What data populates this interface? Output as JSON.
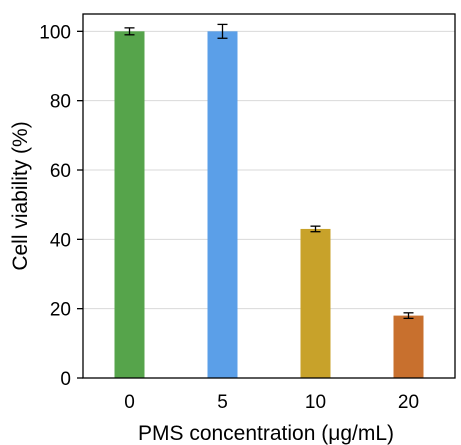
{
  "chart_data": {
    "type": "bar",
    "title": "",
    "xlabel": "PMS concentration (μg/mL)",
    "ylabel": "Cell viability  (%)",
    "categories": [
      "0",
      "5",
      "10",
      "20"
    ],
    "values": [
      100,
      100,
      43,
      18
    ],
    "errors": [
      1,
      2,
      0.8,
      0.8
    ],
    "colors": [
      "#56a44b",
      "#5b9fe8",
      "#c8a22a",
      "#c8702e"
    ],
    "ylim": [
      0,
      105
    ],
    "yticks": [
      0,
      20,
      40,
      60,
      80,
      100
    ],
    "grid": true,
    "grid_color": "#d9d9d9",
    "legend": "none"
  }
}
